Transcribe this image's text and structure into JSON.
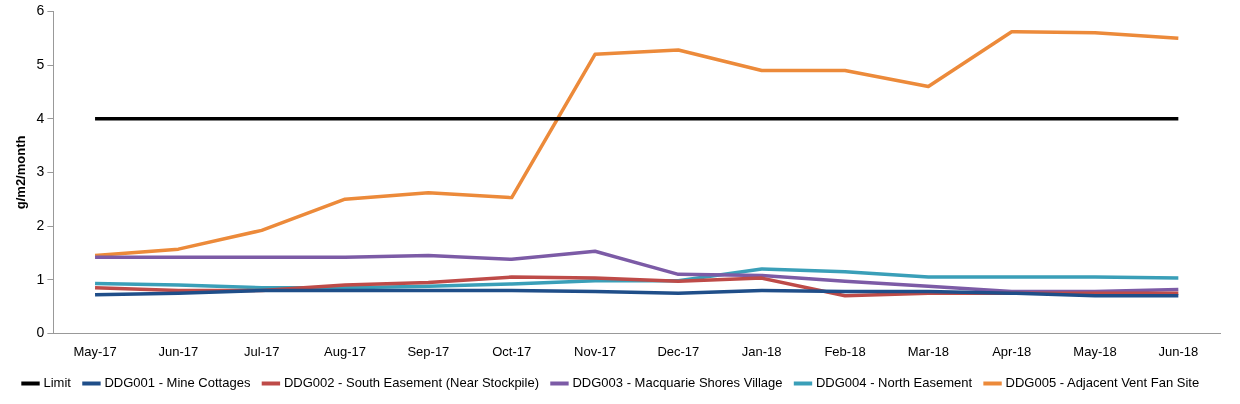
{
  "chart_data": {
    "type": "line",
    "ylabel": "g/m2/month",
    "categories": [
      "May-17",
      "Jun-17",
      "Jul-17",
      "Aug-17",
      "Sep-17",
      "Oct-17",
      "Nov-17",
      "Dec-17",
      "Jan-18",
      "Feb-18",
      "Mar-18",
      "Apr-18",
      "May-18",
      "Jun-18"
    ],
    "ylim": [
      0,
      6
    ],
    "yticks": [
      0,
      1,
      2,
      3,
      4,
      5,
      6
    ],
    "grid": false,
    "legend": "bottom",
    "marker": "none",
    "line_style": "solid",
    "series": [
      {
        "name": "Limit",
        "color": "#000000",
        "values": [
          4,
          4,
          4,
          4,
          4,
          4,
          4,
          4,
          4,
          4,
          4,
          4,
          4,
          4
        ]
      },
      {
        "name": "DDG001 - Mine Cottages",
        "color": "#1f4e89",
        "values": [
          0.72,
          0.75,
          0.8,
          0.8,
          0.8,
          0.8,
          0.78,
          0.75,
          0.8,
          0.78,
          0.78,
          0.75,
          0.7,
          0.7
        ]
      },
      {
        "name": "DDG002 - South Easement (Near Stockpile)",
        "color": "#be4b48",
        "values": [
          0.85,
          0.8,
          0.8,
          0.9,
          0.95,
          1.05,
          1.03,
          0.97,
          1.03,
          0.7,
          0.75,
          null,
          0.75,
          0.75
        ]
      },
      {
        "name": "DDG003 - Macquarie Shores Village",
        "color": "#7c5ba6",
        "values": [
          1.42,
          1.42,
          1.42,
          1.42,
          1.45,
          1.38,
          1.53,
          1.1,
          1.08,
          0.97,
          0.88,
          0.78,
          0.78,
          0.82
        ]
      },
      {
        "name": "DDG004 - North Easement",
        "color": "#3a9fb8",
        "values": [
          0.93,
          0.9,
          0.85,
          0.85,
          0.88,
          0.92,
          0.98,
          0.98,
          1.2,
          1.15,
          1.05,
          1.05,
          1.05,
          1.03
        ]
      },
      {
        "name": "DDG005 - Adjacent Vent Fan Site",
        "color": "#ec8a3a",
        "values": [
          1.45,
          1.57,
          1.92,
          2.5,
          2.62,
          2.53,
          5.2,
          5.28,
          4.9,
          4.9,
          4.6,
          5.62,
          5.6,
          5.5
        ]
      }
    ]
  }
}
